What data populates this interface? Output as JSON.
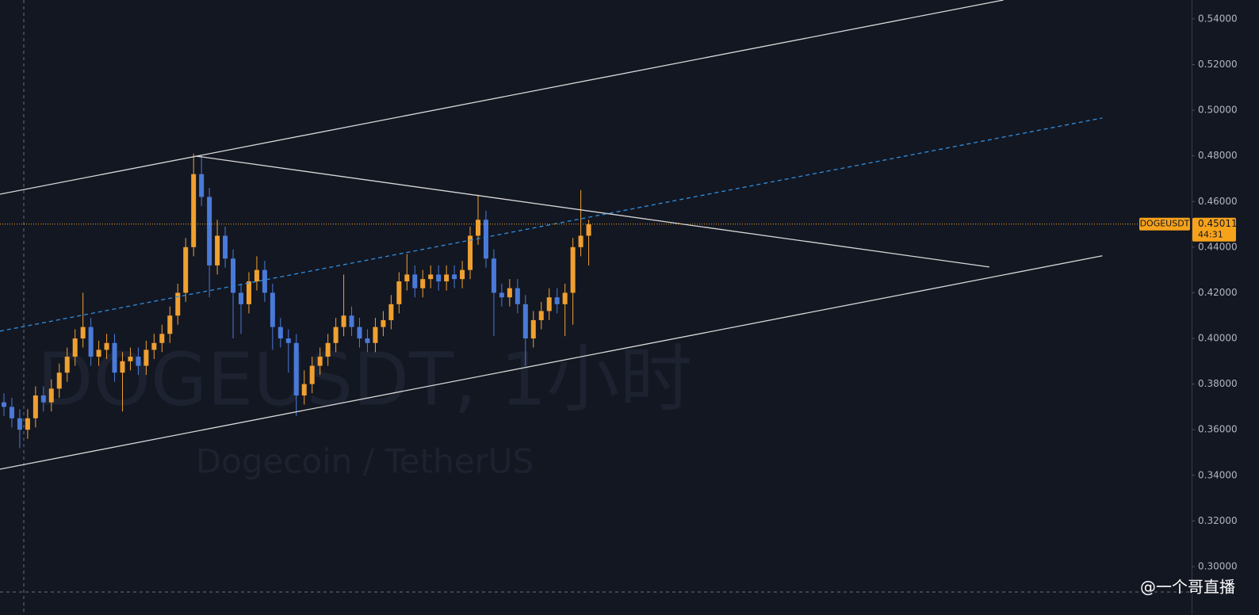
{
  "chart_data": {
    "type": "candlestick",
    "title": "DOGEUSDT, 1小时",
    "subtitle": "Dogecoin / TetherUS",
    "symbol_label": "DOGEUSDT",
    "last_price": 0.45011,
    "countdown": "44:31",
    "watermark": "@一个哥直播",
    "up_color": "#f0a030",
    "down_color": "#4a7ad8",
    "price_line_color": "#f7a21b",
    "xlim": [
      -0.5,
      150.3
    ],
    "ylim": [
      0.2788,
      0.5483
    ],
    "yticks": [
      {
        "value": 0.3,
        "label": "0.30000"
      },
      {
        "value": 0.32,
        "label": "0.32000"
      },
      {
        "value": 0.34,
        "label": "0.34000"
      },
      {
        "value": 0.36,
        "label": "0.36000"
      },
      {
        "value": 0.38,
        "label": "0.38000"
      },
      {
        "value": 0.4,
        "label": "0.40000"
      },
      {
        "value": 0.42,
        "label": "0.42000"
      },
      {
        "value": 0.44,
        "label": "0.44000"
      },
      {
        "value": 0.46,
        "label": "0.46000"
      },
      {
        "value": 0.48,
        "label": "0.48000"
      },
      {
        "value": 0.5,
        "label": "0.50000"
      },
      {
        "value": 0.52,
        "label": "0.52000"
      },
      {
        "value": 0.54,
        "label": "0.54000"
      }
    ],
    "open": [
      0.372,
      0.37,
      0.365,
      0.36,
      0.365,
      0.375,
      0.372,
      0.378,
      0.385,
      0.392,
      0.4,
      0.405,
      0.392,
      0.395,
      0.398,
      0.385,
      0.39,
      0.392,
      0.388,
      0.395,
      0.398,
      0.402,
      0.41,
      0.42,
      0.44,
      0.472,
      0.462,
      0.432,
      0.445,
      0.435,
      0.42,
      0.415,
      0.425,
      0.43,
      0.42,
      0.405,
      0.4,
      0.398,
      0.375,
      0.38,
      0.388,
      0.392,
      0.398,
      0.405,
      0.41,
      0.405,
      0.4,
      0.398,
      0.405,
      0.408,
      0.415,
      0.425,
      0.428,
      0.422,
      0.426,
      0.428,
      0.425,
      0.428,
      0.426,
      0.43,
      0.445,
      0.452,
      0.435,
      0.42,
      0.418,
      0.422,
      0.415,
      0.4,
      0.408,
      0.412,
      0.418,
      0.415,
      0.42,
      0.44,
      0.445
    ],
    "high": [
      0.376,
      0.374,
      0.369,
      0.369,
      0.379,
      0.379,
      0.382,
      0.389,
      0.396,
      0.404,
      0.42,
      0.409,
      0.399,
      0.402,
      0.402,
      0.394,
      0.396,
      0.396,
      0.399,
      0.402,
      0.406,
      0.414,
      0.424,
      0.444,
      0.481,
      0.48,
      0.466,
      0.452,
      0.449,
      0.439,
      0.424,
      0.429,
      0.436,
      0.434,
      0.424,
      0.409,
      0.404,
      0.402,
      0.386,
      0.392,
      0.396,
      0.402,
      0.409,
      0.428,
      0.414,
      0.409,
      0.404,
      0.409,
      0.412,
      0.419,
      0.429,
      0.437,
      0.432,
      0.43,
      0.432,
      0.432,
      0.432,
      0.432,
      0.434,
      0.449,
      0.463,
      0.456,
      0.439,
      0.424,
      0.426,
      0.426,
      0.419,
      0.412,
      0.416,
      0.422,
      0.422,
      0.424,
      0.444,
      0.465,
      0.452
    ],
    "low": [
      0.366,
      0.361,
      0.352,
      0.356,
      0.361,
      0.368,
      0.368,
      0.374,
      0.381,
      0.388,
      0.396,
      0.388,
      0.388,
      0.391,
      0.381,
      0.368,
      0.386,
      0.384,
      0.384,
      0.391,
      0.394,
      0.398,
      0.406,
      0.416,
      0.436,
      0.458,
      0.418,
      0.428,
      0.431,
      0.4,
      0.402,
      0.411,
      0.421,
      0.416,
      0.395,
      0.396,
      0.385,
      0.366,
      0.371,
      0.376,
      0.384,
      0.388,
      0.394,
      0.401,
      0.401,
      0.396,
      0.394,
      0.394,
      0.401,
      0.404,
      0.411,
      0.421,
      0.418,
      0.418,
      0.422,
      0.421,
      0.421,
      0.422,
      0.422,
      0.426,
      0.441,
      0.431,
      0.401,
      0.414,
      0.414,
      0.411,
      0.388,
      0.396,
      0.404,
      0.408,
      0.411,
      0.401,
      0.406,
      0.436,
      0.432
    ],
    "close": [
      0.37,
      0.365,
      0.36,
      0.365,
      0.375,
      0.372,
      0.378,
      0.385,
      0.392,
      0.4,
      0.405,
      0.392,
      0.395,
      0.398,
      0.385,
      0.39,
      0.392,
      0.388,
      0.395,
      0.398,
      0.402,
      0.41,
      0.42,
      0.44,
      0.472,
      0.462,
      0.432,
      0.445,
      0.435,
      0.42,
      0.415,
      0.425,
      0.43,
      0.42,
      0.405,
      0.4,
      0.398,
      0.375,
      0.38,
      0.388,
      0.392,
      0.398,
      0.405,
      0.41,
      0.405,
      0.4,
      0.398,
      0.405,
      0.408,
      0.415,
      0.425,
      0.428,
      0.422,
      0.426,
      0.428,
      0.425,
      0.428,
      0.426,
      0.43,
      0.445,
      0.452,
      0.435,
      0.42,
      0.418,
      0.422,
      0.415,
      0.4,
      0.408,
      0.412,
      0.418,
      0.415,
      0.42,
      0.44,
      0.445,
      0.45
    ],
    "trendlines": [
      {
        "x": [
          -0.5,
          126.5
        ],
        "y": [
          0.4632,
          0.5483
        ],
        "color": "#d8d8d8",
        "dashed": false
      },
      {
        "x": [
          -0.5,
          139
        ],
        "y": [
          0.3427,
          0.4362
        ],
        "color": "#d8d8d8",
        "dashed": false
      },
      {
        "x": [
          24.3,
          124.7
        ],
        "y": [
          0.4799,
          0.4313
        ],
        "color": "#d8d8d8",
        "dashed": false
      },
      {
        "x": [
          -0.5,
          139
        ],
        "y": [
          0.4032,
          0.4966
        ],
        "color": "#2f8fe0",
        "dashed": true
      }
    ]
  }
}
